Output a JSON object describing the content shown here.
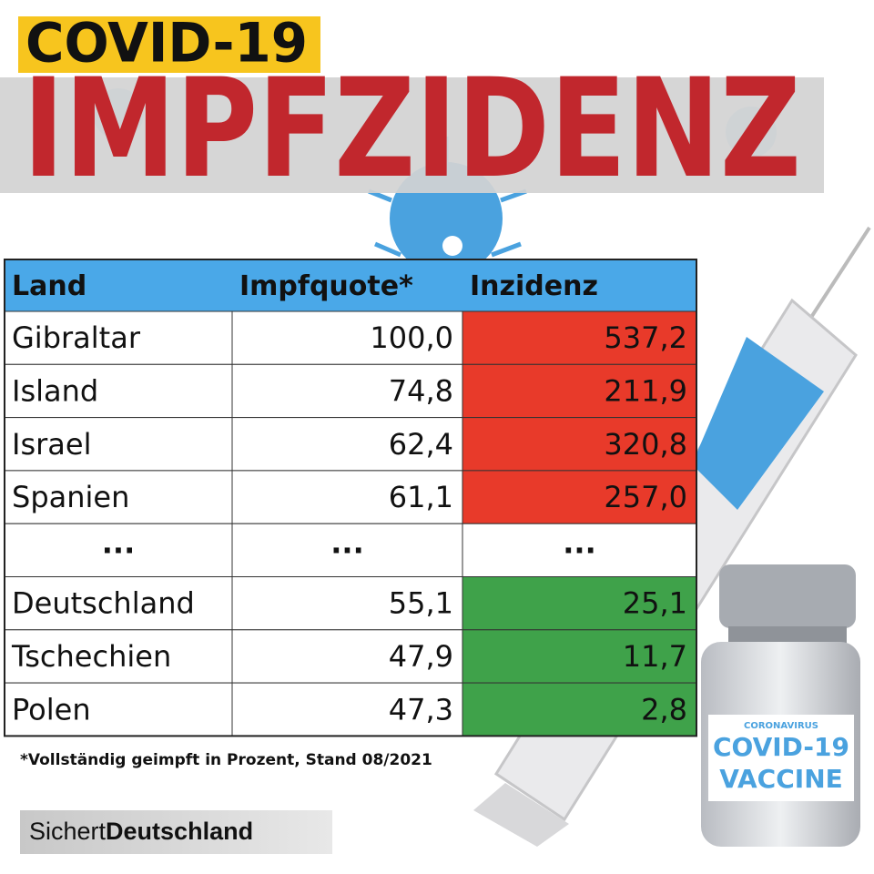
{
  "header": {
    "tag": "COVID-19",
    "title": "IMPFZIDENZ"
  },
  "table": {
    "columns": [
      "Land",
      "Impfquote*",
      "Inzidenz"
    ],
    "rows": [
      [
        "Gibraltar",
        "100,0",
        "537,2"
      ],
      [
        "Island",
        "74,8",
        "211,9"
      ],
      [
        "Israel",
        "62,4",
        "320,8"
      ],
      [
        "Spanien",
        "61,1",
        "257,0"
      ],
      [
        "...",
        "...",
        "..."
      ],
      [
        "Deutschland",
        "55,1",
        "25,1"
      ],
      [
        "Tschechien",
        "47,9",
        "11,7"
      ],
      [
        "Polen",
        "47,3",
        "2,8"
      ]
    ]
  },
  "footnote": "*Vollständig geimpft in Prozent, Stand 08/2021",
  "brand": {
    "light": "Sichert",
    "bold": "Deutschland"
  },
  "vaccine": {
    "kicker": "CORONAVIRUS",
    "line1": "COVID-19",
    "line2": "VACCINE"
  }
}
